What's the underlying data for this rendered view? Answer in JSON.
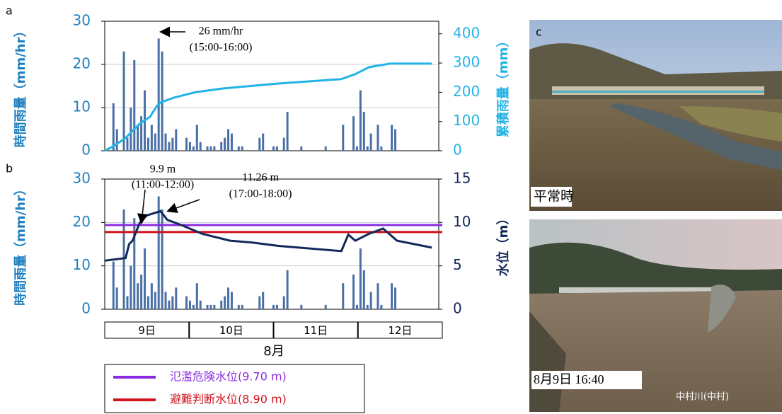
{
  "chart_data": [
    {
      "type": "bar_line",
      "panel": "a",
      "ylabel": "時間雨量（mm/hr）",
      "ylim": [
        0,
        30
      ],
      "yticks": [
        0,
        10,
        20,
        30
      ],
      "y2label": "累積雨量（mm）",
      "y2lim": [
        0,
        443
      ],
      "y2ticks": [
        0,
        100,
        200,
        300,
        400
      ],
      "xlim": [
        0,
        96
      ],
      "grid": true,
      "series": [
        {
          "type": "bar",
          "color": "#4a6fa5",
          "x": [
            2,
            3,
            5,
            6,
            7,
            8,
            9,
            10,
            11,
            12,
            13,
            14,
            15,
            16,
            17,
            18,
            19,
            20,
            23,
            24,
            25,
            26,
            27,
            29,
            30,
            31,
            33,
            34,
            35,
            36,
            38,
            39,
            44,
            45,
            48,
            49,
            51,
            52,
            56,
            63,
            68,
            71,
            72,
            73,
            74,
            75,
            76,
            78,
            79,
            82,
            83
          ],
          "values": [
            11,
            5,
            23,
            3,
            10,
            21,
            6,
            8,
            14,
            3,
            6,
            4,
            26,
            23,
            4,
            2,
            3,
            5,
            3,
            2,
            1,
            6,
            2,
            1,
            1,
            1,
            2,
            3,
            5,
            4,
            1,
            1,
            3,
            4,
            1,
            1,
            3,
            9,
            1,
            1,
            6,
            8,
            1,
            14,
            9,
            1,
            4,
            6,
            1,
            6,
            5
          ]
        },
        {
          "type": "line",
          "axis": "y2",
          "color": "#22b3e6",
          "x": [
            0,
            3,
            6,
            10,
            13,
            15,
            16,
            20,
            26,
            34,
            50,
            68,
            72,
            76,
            82,
            94
          ],
          "values": [
            0,
            19,
            44,
            92,
            116,
            153,
            165,
            182,
            200,
            213,
            230,
            245,
            262,
            286,
            298,
            298
          ]
        }
      ],
      "annotations": [
        [
          "26 mm/hr",
          "(15:00-16:00)"
        ]
      ]
    },
    {
      "type": "bar_line",
      "panel": "b",
      "ylabel": "時間雨量（mm/hr）",
      "ylim": [
        0,
        30
      ],
      "yticks": [
        0,
        10,
        20,
        30
      ],
      "y2label": "水位（m）",
      "y2lim": [
        0,
        15
      ],
      "y2ticks": [
        0,
        5,
        10,
        15
      ],
      "xlim": [
        0,
        96
      ],
      "grid": true,
      "categories": [
        "9日",
        "10日",
        "11日",
        "12日"
      ],
      "xlabel": "8月",
      "series": [
        {
          "type": "bar",
          "color": "#4a6fa5",
          "x": [
            2,
            3,
            5,
            6,
            7,
            8,
            9,
            10,
            11,
            12,
            13,
            14,
            15,
            16,
            17,
            18,
            19,
            20,
            23,
            24,
            25,
            26,
            27,
            29,
            30,
            31,
            33,
            34,
            35,
            36,
            38,
            39,
            44,
            45,
            48,
            49,
            51,
            52,
            56,
            63,
            68,
            71,
            72,
            73,
            74,
            75,
            76,
            78,
            79,
            82,
            83
          ],
          "values": [
            11,
            5,
            23,
            3,
            10,
            21,
            6,
            8,
            14,
            3,
            6,
            4,
            26,
            23,
            4,
            2,
            3,
            5,
            3,
            2,
            1,
            6,
            2,
            1,
            1,
            1,
            2,
            3,
            5,
            4,
            1,
            1,
            3,
            4,
            1,
            1,
            3,
            9,
            1,
            1,
            6,
            8,
            1,
            14,
            9,
            1,
            4,
            6,
            1,
            6,
            5
          ]
        },
        {
          "type": "hline",
          "axis": "y2",
          "name": "氾濫危険水位(9.70 m)",
          "color": "#8a2be2",
          "value": 9.7
        },
        {
          "type": "hline",
          "axis": "y2",
          "name": "避難判断水位(8.90 m)",
          "color": "#d0141e",
          "value": 8.9
        },
        {
          "type": "line",
          "axis": "y2",
          "color": "#13285a",
          "x": [
            0,
            6,
            7,
            8,
            10,
            12,
            16,
            18,
            22,
            28,
            36,
            42,
            50,
            68,
            70,
            72,
            76,
            80,
            84,
            94
          ],
          "values": [
            5.6,
            5.9,
            7.5,
            7.9,
            9.9,
            10.8,
            11.3,
            10.3,
            9.7,
            8.7,
            7.9,
            7.7,
            7.3,
            6.7,
            8.6,
            7.9,
            8.7,
            9.3,
            7.9,
            7.1
          ]
        }
      ],
      "annotations": [
        [
          "9.9 m",
          "(11:00-12:00)"
        ],
        [
          "11.26 m",
          "(17:00-18:00)"
        ]
      ]
    }
  ],
  "panel_c": {
    "label": "c",
    "photo_top_caption": "平常時",
    "photo_bottom_caption": "8月9日 16:40",
    "photo_bottom_watermark": "中村川(中村)"
  }
}
